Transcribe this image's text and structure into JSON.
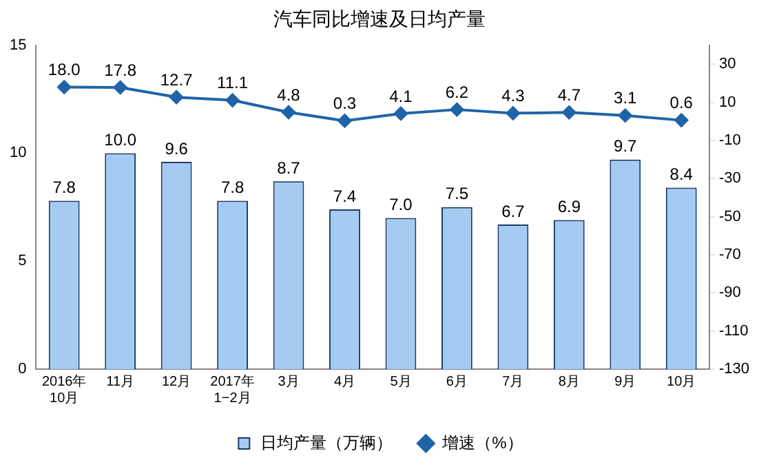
{
  "chart_data": {
    "type": "bar",
    "title": "汽车同比增速及日均产量",
    "categories": [
      "2016年\n10月",
      "11月",
      "12月",
      "2017年\n1−2月",
      "3月",
      "4月",
      "5月",
      "6月",
      "7月",
      "8月",
      "9月",
      "10月"
    ],
    "series": [
      {
        "name": "日均产量（万辆）",
        "color": "#a6cbf3",
        "values": [
          7.8,
          10.0,
          9.6,
          7.8,
          8.7,
          7.4,
          7.0,
          7.5,
          6.7,
          6.9,
          9.7,
          8.4
        ]
      },
      {
        "name": "增速（%）",
        "type": "line",
        "axis": "y2",
        "color": "#1f64a8",
        "values": [
          18.0,
          17.8,
          12.7,
          11.1,
          4.8,
          0.3,
          4.1,
          6.2,
          4.3,
          4.7,
          3.1,
          0.6
        ]
      }
    ],
    "value_labels": [
      [
        "7.8",
        "10.0",
        "9.6",
        "7.8",
        "8.7",
        "7.4",
        "7.0",
        "7.5",
        "6.7",
        "6.9",
        "9.7",
        "8.4"
      ],
      [
        "18.0",
        "17.8",
        "12.7",
        "11.1",
        "4.8",
        "0.3",
        "4.1",
        "6.2",
        "4.3",
        "4.7",
        "3.1",
        "0.6"
      ]
    ],
    "ylim": [
      0,
      15
    ],
    "yticks": [
      0,
      5,
      10,
      15
    ],
    "y2lim": [
      -130,
      40
    ],
    "y2ticks": [
      -130,
      -110,
      -90,
      -70,
      -50,
      -30,
      -10,
      10,
      30
    ],
    "marker": "diamond",
    "legend": "bottom",
    "grid": false
  }
}
